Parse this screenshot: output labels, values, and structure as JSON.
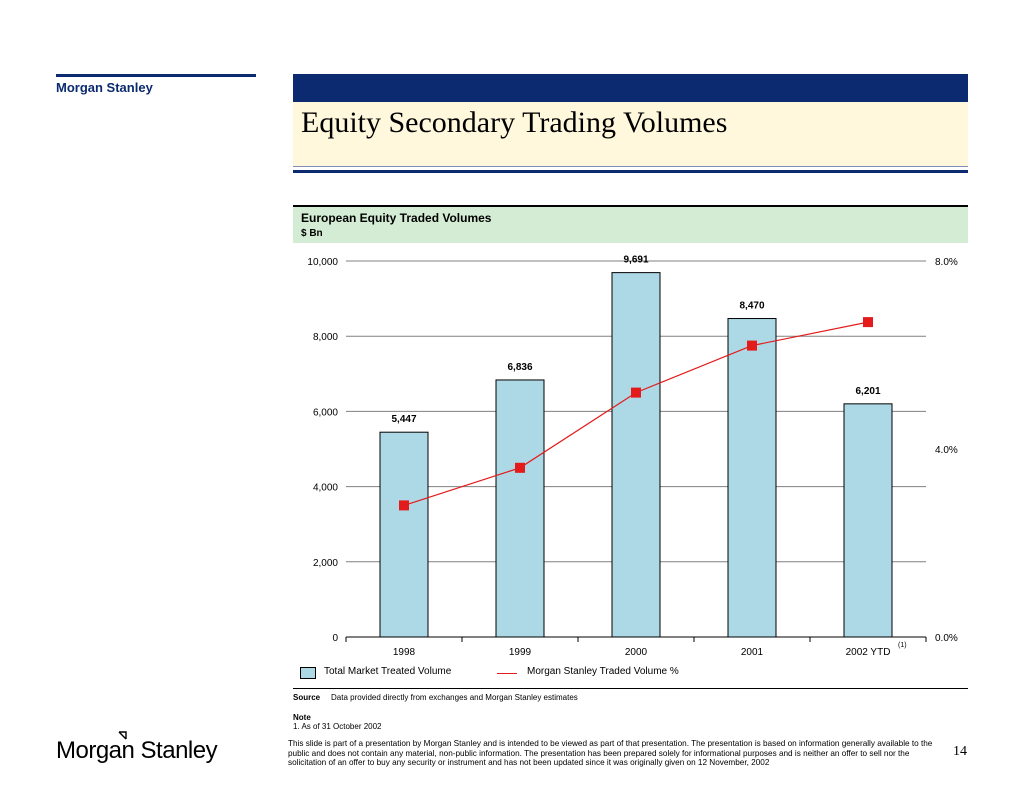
{
  "brand": {
    "name": "Morgan Stanley"
  },
  "page": {
    "title": "Equity Secondary Trading Volumes",
    "number": "14"
  },
  "chart_data": {
    "type": "bar",
    "title": "European Equity Traded Volumes",
    "subtitle": "$ Bn",
    "categories": [
      "1998",
      "1999",
      "2000",
      "2001",
      "2002 YTD"
    ],
    "category_footnote": "(1)",
    "ylim": [
      0,
      10000
    ],
    "y_ticks": [
      "0",
      "2,000",
      "4,000",
      "6,000",
      "8,000",
      "10,000"
    ],
    "y2lim": [
      0,
      8
    ],
    "y2_ticks": [
      "0.0%",
      "4.0%",
      "8.0%"
    ],
    "grid": true,
    "series": [
      {
        "name": "Total Market Treated Volume",
        "kind": "bar",
        "color": "#add8e6",
        "values": [
          5447,
          6836,
          9691,
          8470,
          6201
        ],
        "labels": [
          "5,447",
          "6,836",
          "9,691",
          "8,470",
          "6,201"
        ]
      },
      {
        "name": "Morgan Stanley Traded Volume %",
        "kind": "line",
        "axis": "right",
        "color": "#e31b1b",
        "values": [
          2.8,
          3.6,
          5.2,
          6.2,
          6.7
        ]
      }
    ]
  },
  "footer": {
    "source_label": "Source",
    "source_text": "Data provided directly from exchanges and Morgan Stanley estimates",
    "note_label": "Note",
    "note_text": "1.  As of 31 October 2002",
    "disclaimer": "This slide is part of a presentation by Morgan Stanley and is intended to be viewed as part of that presentation.  The presentation is based on information generally available to the public and does not contain any material, non-public information.  The presentation has been prepared solely for informational purposes and is neither an offer to sell nor the solicitation of an offer to buy any security or instrument and has not been updated since it was originally given on 12 November, 2002"
  }
}
